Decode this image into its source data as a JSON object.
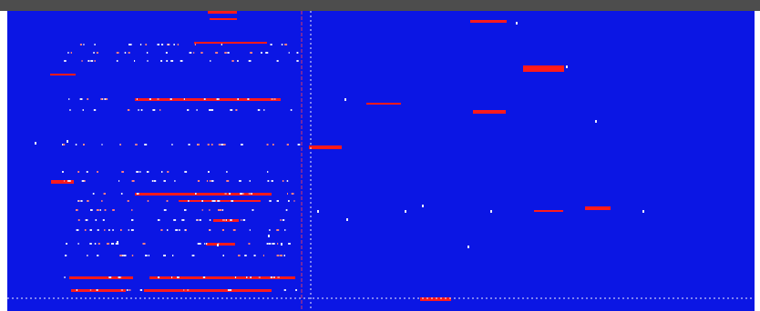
{
  "colors": {
    "window_bar": "#4d4d4d",
    "background": "#0b16e4",
    "segment": "#ff1a1a",
    "guide": "#f0f0ff"
  },
  "guides": {
    "vertical_dotted": 1,
    "vertical_solid": 1,
    "horizontal_dotted": 1
  },
  "marks": {
    "note": ""
  }
}
